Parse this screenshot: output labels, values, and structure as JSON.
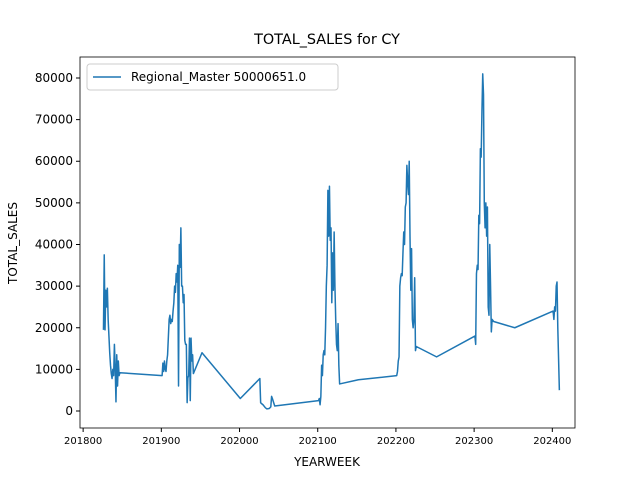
{
  "chart_data": {
    "type": "line",
    "title": "TOTAL_SALES for CY",
    "x_label": "YEARWEEK",
    "y_label": "TOTAL_SALES",
    "x": [
      201826,
      201827,
      201828,
      201829,
      201830,
      201831,
      201832,
      201833,
      201834,
      201835,
      201836,
      201837,
      201838,
      201839,
      201840,
      201841,
      201842,
      201843,
      201844,
      201845,
      201846,
      201847,
      201901,
      201902,
      201903,
      201904,
      201905,
      201906,
      201907,
      201908,
      201910,
      201911,
      201912,
      201913,
      201914,
      201915,
      201916,
      201917,
      201918,
      201919,
      201920,
      201921,
      201922,
      201923,
      201924,
      201925,
      201926,
      201927,
      201928,
      201929,
      201930,
      201931,
      201932,
      201933,
      201934,
      201935,
      201936,
      201937,
      201938,
      201939,
      201940,
      201941,
      201952,
      202001,
      202026,
      202027,
      202028,
      202030,
      202033,
      202035,
      202038,
      202040,
      202041,
      202042,
      202045,
      202101,
      202102,
      202103,
      202104,
      202105,
      202106,
      202107,
      202108,
      202109,
      202110,
      202111,
      202112,
      202113,
      202114,
      202115,
      202116,
      202117,
      202118,
      202119,
      202120,
      202121,
      202122,
      202123,
      202124,
      202125,
      202126,
      202127,
      202128,
      202152,
      202201,
      202202,
      202203,
      202204,
      202205,
      202206,
      202207,
      202208,
      202209,
      202210,
      202211,
      202212,
      202213,
      202214,
      202215,
      202216,
      202217,
      202218,
      202219,
      202220,
      202221,
      202222,
      202223,
      202224,
      202225,
      202226,
      202252,
      202301,
      202302,
      202303,
      202304,
      202305,
      202306,
      202307,
      202308,
      202309,
      202310,
      202311,
      202312,
      202313,
      202314,
      202315,
      202316,
      202317,
      202318,
      202319,
      202320,
      202321,
      202322,
      202323,
      202325,
      202352,
      202401,
      202402,
      202403,
      202404,
      202405,
      202406,
      202407,
      202409
    ],
    "series": [
      {
        "name": "Regional_Master 50000651.0",
        "color": "#1f77b4",
        "values": [
          19500,
          37500,
          19500,
          29000,
          25000,
          29500,
          22000,
          18000,
          14000,
          11000,
          9000,
          7800,
          10000,
          8500,
          16000,
          10500,
          2200,
          13500,
          6000,
          12000,
          8500,
          9200,
          8500,
          11500,
          9500,
          12000,
          10000,
          9500,
          12000,
          13500,
          22000,
          23000,
          21000,
          22000,
          21500,
          24000,
          26000,
          30000,
          28500,
          33000,
          31000,
          35000,
          6000,
          40000,
          34500,
          44000,
          30000,
          30000,
          26000,
          28000,
          17000,
          16000,
          16000,
          2000,
          8000,
          8500,
          17500,
          2500,
          17500,
          12000,
          13500,
          9000,
          14000,
          3000,
          7800,
          2000,
          1800,
          1500,
          800,
          500,
          600,
          1000,
          3500,
          3000,
          1200,
          2500,
          3000,
          1500,
          3500,
          11000,
          8500,
          13500,
          14500,
          13500,
          20000,
          30000,
          35000,
          53000,
          42000,
          54000,
          41000,
          44000,
          26000,
          38000,
          29000,
          43000,
          30000,
          22000,
          16000,
          14500,
          21000,
          11000,
          6500,
          7500,
          8500,
          9500,
          12000,
          13000,
          30000,
          32000,
          33000,
          32500,
          38000,
          43000,
          40000,
          49000,
          50000,
          59000,
          55000,
          52000,
          60000,
          42000,
          29000,
          39000,
          22000,
          20000,
          22000,
          32000,
          14500,
          15500,
          13000,
          18000,
          16000,
          33000,
          35000,
          34000,
          47000,
          45000,
          63000,
          61000,
          72000,
          81000,
          76000,
          50000,
          44000,
          50000,
          42000,
          49000,
          25000,
          23000,
          40000,
          30000,
          19000,
          22000,
          21500,
          20000,
          24000,
          22000,
          25000,
          24000,
          30000,
          31000,
          20000,
          5000
        ]
      }
    ],
    "xlim": [
      201796,
      202429
    ],
    "xticks": [
      201800,
      201900,
      202000,
      202100,
      202200,
      202300,
      202400
    ],
    "ylim": [
      -4084,
      85045
    ],
    "yticks": [
      0,
      10000,
      20000,
      30000,
      40000,
      50000,
      60000,
      70000,
      80000
    ],
    "legend": "upper left"
  }
}
